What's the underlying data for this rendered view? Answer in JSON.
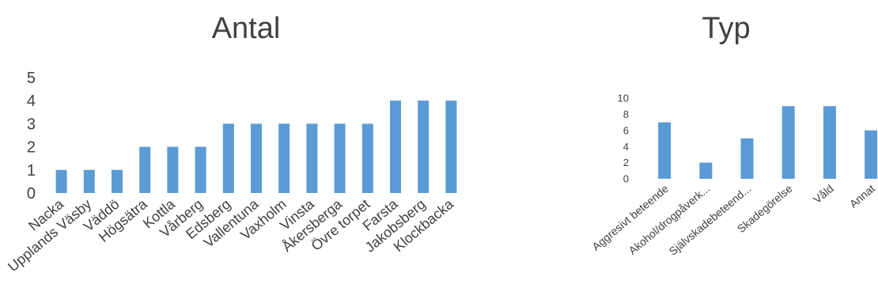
{
  "chart_data": [
    {
      "type": "bar",
      "title": "Antal",
      "categories": [
        "Nacka",
        "Upplands Väsby",
        "Väddö",
        "Högsätra",
        "Kottla",
        "Vårberg",
        "Edsberg",
        "Vallentuna",
        "Vaxholm",
        "Vinsta",
        "Åkersberga",
        "Övre torpet",
        "Farsta",
        "Jakobsberg",
        "Klockbacka"
      ],
      "values": [
        1,
        1,
        1,
        2,
        2,
        2,
        3,
        3,
        3,
        3,
        3,
        3,
        4,
        4,
        4
      ],
      "ylim": [
        0,
        5
      ],
      "yticks": [
        0,
        1,
        2,
        3,
        4,
        5
      ],
      "grid": false,
      "bar_color": "#5b9bd5"
    },
    {
      "type": "bar",
      "title": "Typ",
      "categories": [
        "Aggresivt beteende",
        "Akohol/drogpåverk...",
        "Självskadebeteend...",
        "Skadegörelse",
        "Våld",
        "Annat"
      ],
      "values": [
        7,
        2,
        5,
        9,
        9,
        6
      ],
      "ylim": [
        0,
        10
      ],
      "yticks": [
        0,
        2,
        4,
        6,
        8,
        10
      ],
      "grid": false,
      "bar_color": "#5b9bd5"
    }
  ]
}
